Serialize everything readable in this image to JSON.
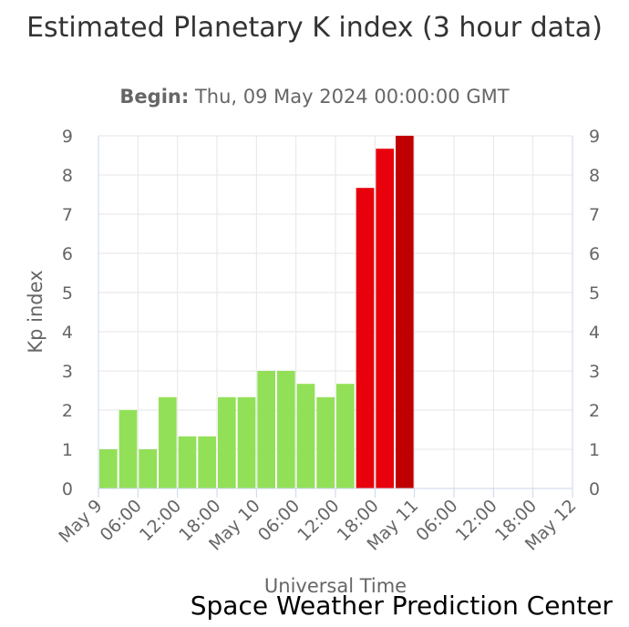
{
  "title": "Estimated Planetary K index (3 hour data)",
  "subtitle_label": "Begin:",
  "subtitle_value": "Thu, 09 May 2024 00:00:00 GMT",
  "credit": "Space Weather Prediction Center",
  "colors": {
    "quiet": "#92e057",
    "storm": "#e8000c",
    "severe": "#c00000"
  },
  "chart_data": {
    "type": "bar",
    "title": "Estimated Planetary K index (3 hour data)",
    "xlabel": "Universal Time",
    "ylabel": "Kp index",
    "ylim": [
      0,
      9
    ],
    "yticks": [
      "0",
      "1",
      "2",
      "3",
      "4",
      "5",
      "6",
      "7",
      "8",
      "9"
    ],
    "xticks": [
      "May 9",
      "06:00",
      "12:00",
      "18:00",
      "May 10",
      "06:00",
      "12:00",
      "18:00",
      "May 11",
      "06:00",
      "12:00",
      "18:00",
      "May 12"
    ],
    "slots": 24,
    "values": [
      1.0,
      2.0,
      1.0,
      2.33,
      1.33,
      1.33,
      2.33,
      2.33,
      3.0,
      3.0,
      2.67,
      2.33,
      2.67,
      7.67,
      8.67,
      9.0
    ]
  }
}
